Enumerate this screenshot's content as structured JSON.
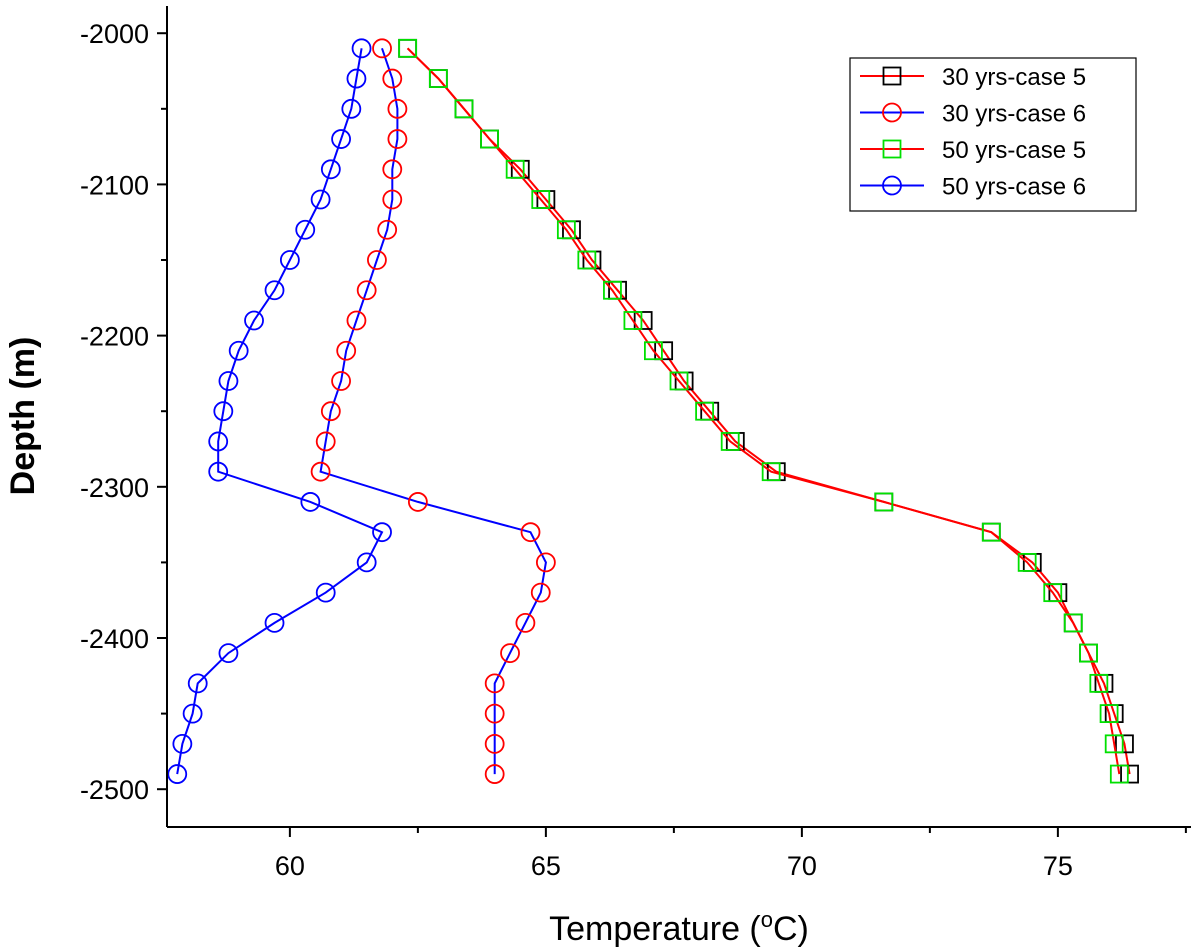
{
  "chart_data": {
    "type": "line",
    "xlabel": "Temperature (°C)",
    "xlabel_parts": {
      "prefix": "Temperature (",
      "sup": "o",
      "suffix": "C)"
    },
    "ylabel": "Depth (m)",
    "xlim": [
      57.6,
      77.6
    ],
    "ylim": [
      -2525,
      -1982
    ],
    "xticks": [
      60,
      65,
      70,
      75
    ],
    "xtick_labels": [
      "60",
      "65",
      "70",
      "75"
    ],
    "yticks": [
      -2000,
      -2100,
      -2200,
      -2300,
      -2400,
      -2500
    ],
    "ytick_labels": [
      "-2000",
      "-2100",
      "-2200",
      "-2300",
      "-2400",
      "-2500"
    ],
    "grid": false,
    "legend_position": "top-right",
    "series": [
      {
        "name": "30 yrs-case 5",
        "line_color": "#ff0000",
        "marker": "square",
        "marker_color": "#000000",
        "x": [
          62.3,
          62.9,
          63.4,
          63.9,
          64.5,
          65.0,
          65.5,
          65.9,
          66.4,
          66.9,
          67.3,
          67.7,
          68.2,
          68.7,
          69.5,
          71.6,
          73.7,
          74.5,
          75.0,
          75.3,
          75.6,
          75.9,
          76.1,
          76.3,
          76.4
        ],
        "y": [
          -2010,
          -2030,
          -2050,
          -2070,
          -2090,
          -2110,
          -2130,
          -2150,
          -2170,
          -2190,
          -2210,
          -2230,
          -2250,
          -2270,
          -2290,
          -2310,
          -2330,
          -2350,
          -2370,
          -2390,
          -2410,
          -2430,
          -2450,
          -2470,
          -2490
        ]
      },
      {
        "name": "30 yrs-case 6",
        "line_color": "#0000ff",
        "marker": "circle",
        "marker_color": "#ff0000",
        "x": [
          61.8,
          62.0,
          62.1,
          62.1,
          62.0,
          62.0,
          61.9,
          61.7,
          61.5,
          61.3,
          61.1,
          61.0,
          60.8,
          60.7,
          60.6,
          62.5,
          64.7,
          65.0,
          64.9,
          64.6,
          64.3,
          64.0,
          64.0,
          64.0,
          64.0
        ],
        "y": [
          -2010,
          -2030,
          -2050,
          -2070,
          -2090,
          -2110,
          -2130,
          -2150,
          -2170,
          -2190,
          -2210,
          -2230,
          -2250,
          -2270,
          -2290,
          -2310,
          -2330,
          -2350,
          -2370,
          -2390,
          -2410,
          -2430,
          -2450,
          -2470,
          -2490
        ]
      },
      {
        "name": "50 yrs-case 5",
        "line_color": "#ff0000",
        "marker": "square",
        "marker_color": "#00e000",
        "x": [
          62.3,
          62.9,
          63.4,
          63.9,
          64.4,
          64.9,
          65.4,
          65.8,
          66.3,
          66.7,
          67.1,
          67.6,
          68.1,
          68.6,
          69.4,
          71.6,
          73.7,
          74.4,
          74.9,
          75.3,
          75.6,
          75.8,
          76.0,
          76.1,
          76.2
        ],
        "y": [
          -2010,
          -2030,
          -2050,
          -2070,
          -2090,
          -2110,
          -2130,
          -2150,
          -2170,
          -2190,
          -2210,
          -2230,
          -2250,
          -2270,
          -2290,
          -2310,
          -2330,
          -2350,
          -2370,
          -2390,
          -2410,
          -2430,
          -2450,
          -2470,
          -2490
        ]
      },
      {
        "name": "50 yrs-case 6",
        "line_color": "#0000ff",
        "marker": "circle",
        "marker_color": "#0000ff",
        "x": [
          61.4,
          61.3,
          61.2,
          61.0,
          60.8,
          60.6,
          60.3,
          60.0,
          59.7,
          59.3,
          59.0,
          58.8,
          58.7,
          58.6,
          58.6,
          60.4,
          61.8,
          61.5,
          60.7,
          59.7,
          58.8,
          58.2,
          58.1,
          57.9,
          57.8
        ],
        "y": [
          -2010,
          -2030,
          -2050,
          -2070,
          -2090,
          -2110,
          -2130,
          -2150,
          -2170,
          -2190,
          -2210,
          -2230,
          -2250,
          -2270,
          -2290,
          -2310,
          -2330,
          -2350,
          -2370,
          -2390,
          -2410,
          -2430,
          -2450,
          -2470,
          -2490
        ]
      }
    ]
  }
}
